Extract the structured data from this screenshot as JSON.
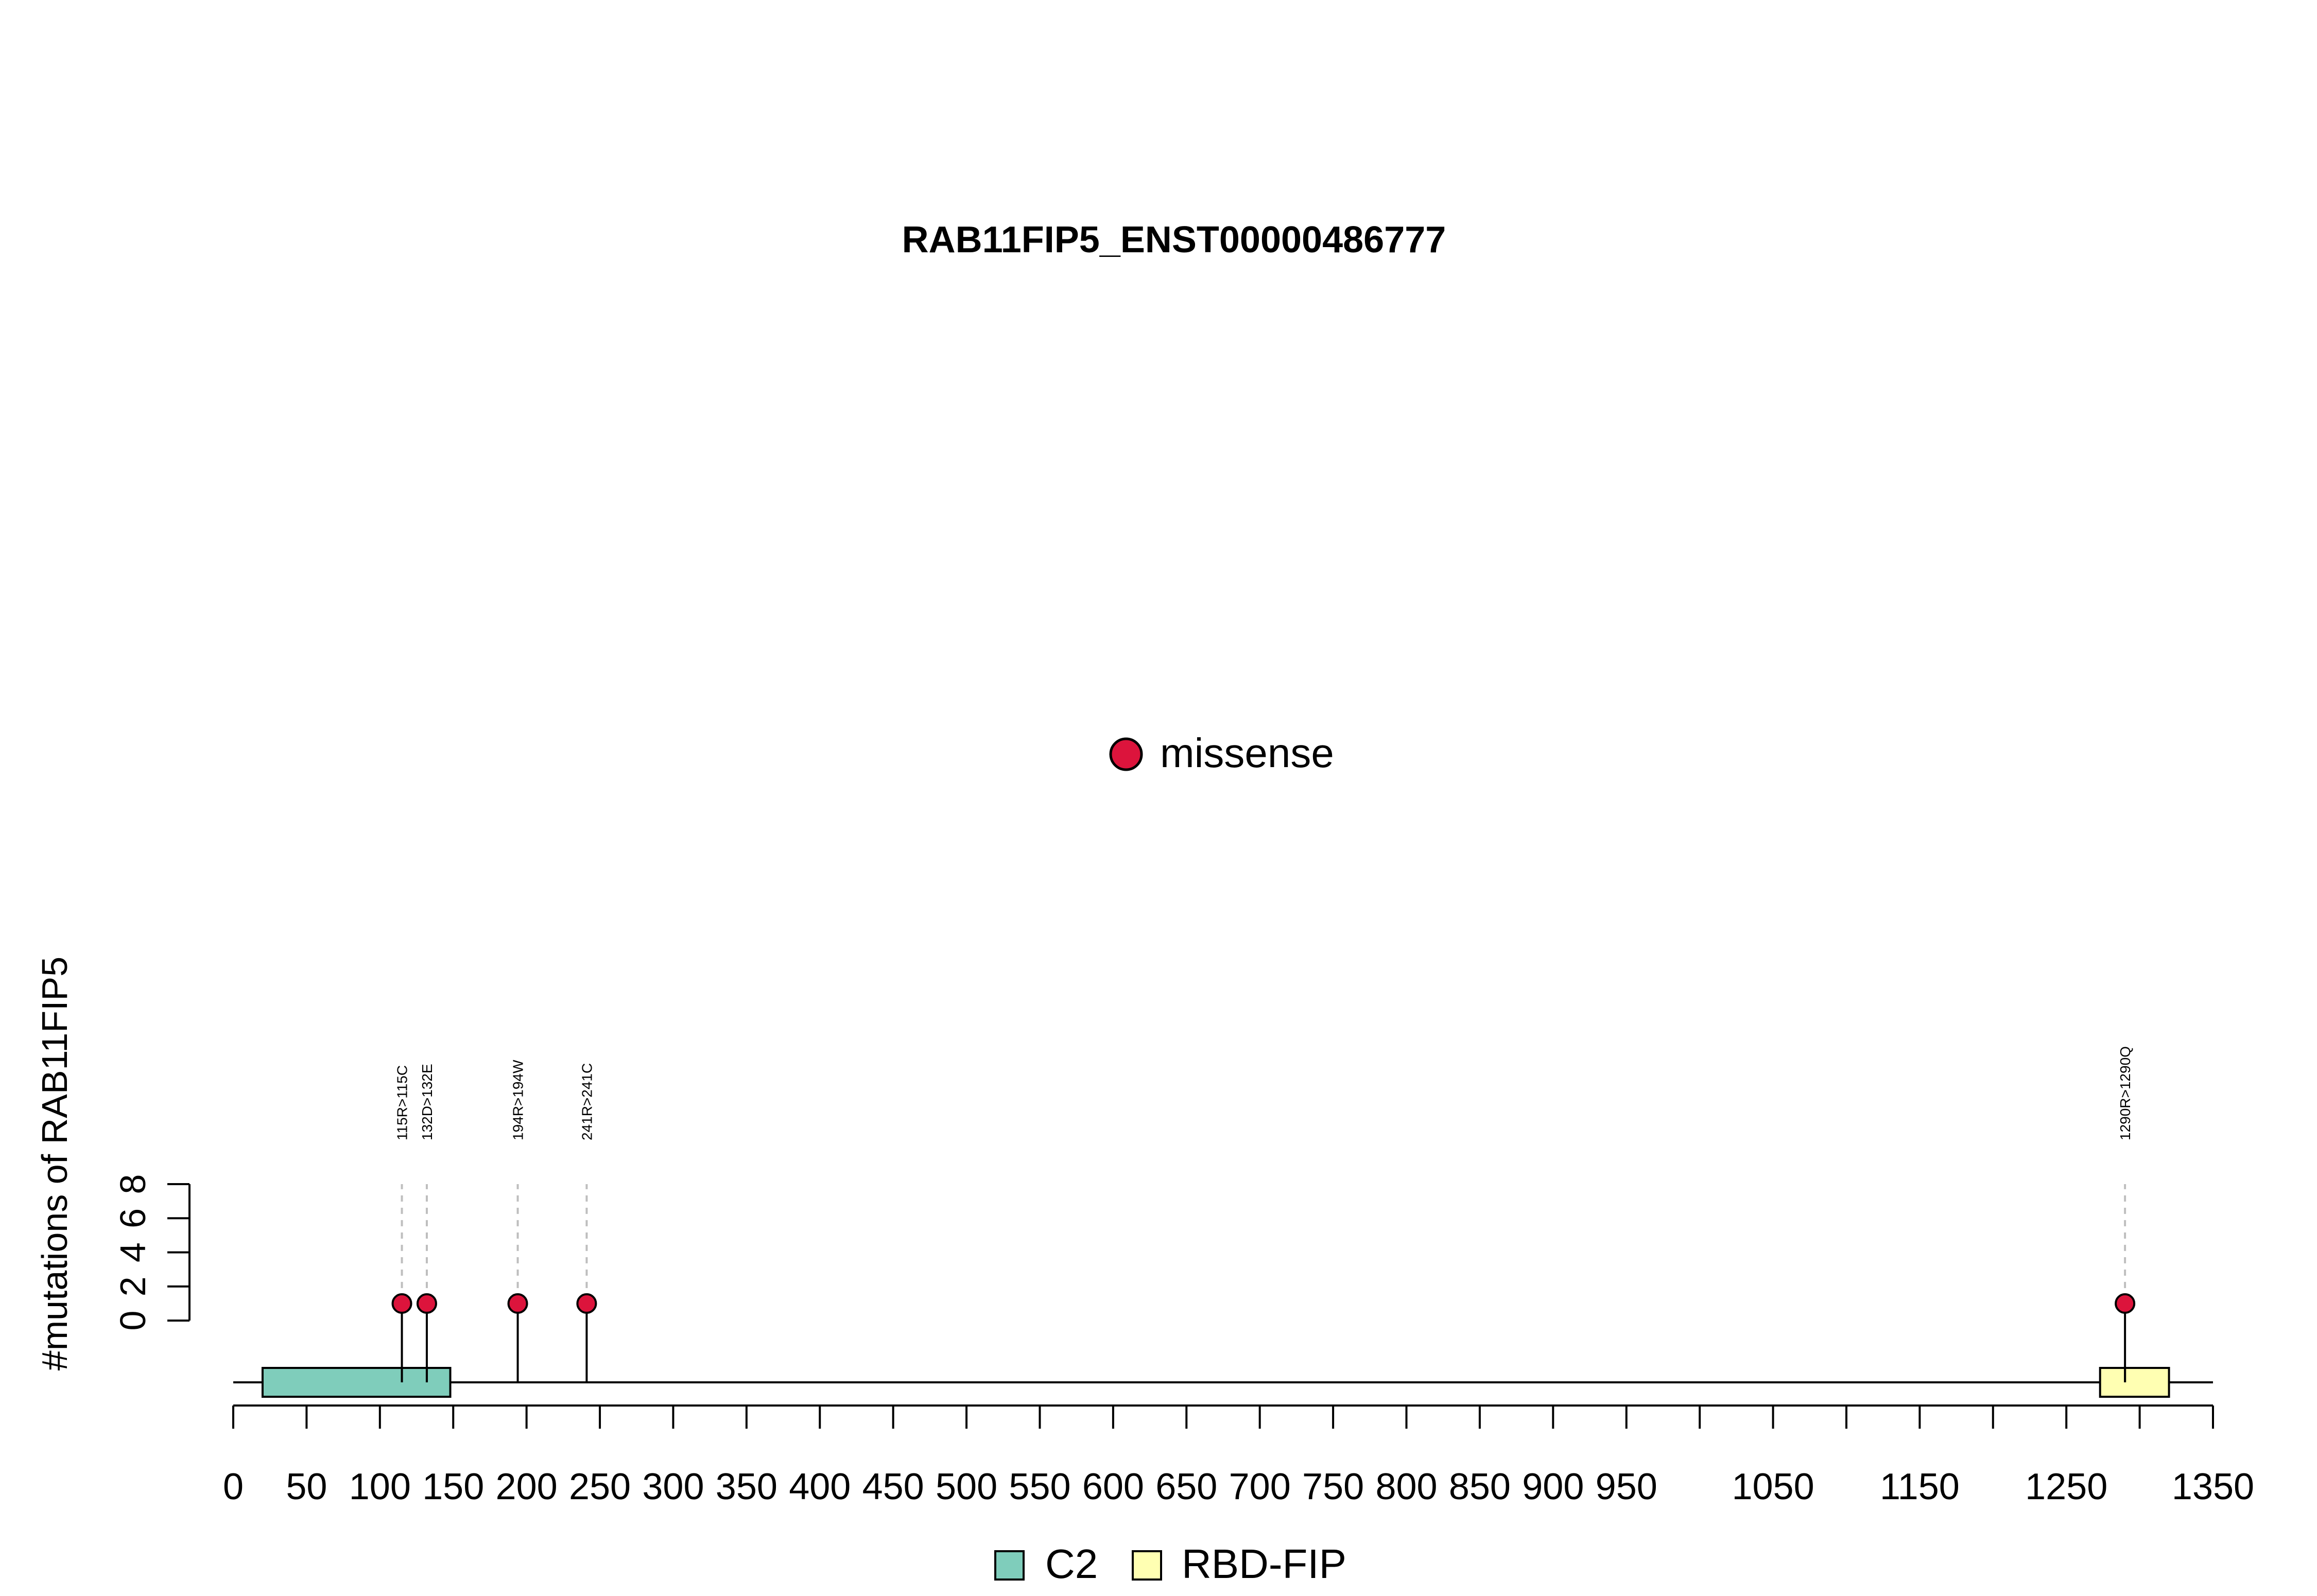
{
  "chart_data": {
    "type": "lollipop",
    "title": "RAB11FIP5_ENST00000486777",
    "ylabel": "#mutations of RAB11FIP5",
    "xlim": [
      0,
      1350
    ],
    "x_ticks": [
      0,
      50,
      100,
      150,
      200,
      250,
      300,
      350,
      400,
      450,
      500,
      550,
      600,
      650,
      700,
      750,
      800,
      850,
      900,
      950,
      1000,
      1050,
      1100,
      1150,
      1200,
      1250,
      1300,
      1350
    ],
    "x_tick_labels": [
      "0",
      "50",
      "100",
      "150",
      "200",
      "250",
      "300",
      "350",
      "400",
      "450",
      "500",
      "550",
      "600",
      "650",
      "700",
      "750",
      "800",
      "850",
      "900",
      "950",
      "",
      "1050",
      "",
      "1150",
      "",
      "1250",
      "",
      "1350"
    ],
    "ylim": [
      0,
      8
    ],
    "y_ticks": [
      0,
      2,
      4,
      6,
      8
    ],
    "mutation_type": {
      "name": "missense",
      "color": "#DC143C"
    },
    "mutations": [
      {
        "position": 115,
        "count": 1,
        "label": "115R>115C"
      },
      {
        "position": 132,
        "count": 1,
        "label": "132D>132E"
      },
      {
        "position": 194,
        "count": 1,
        "label": "194R>194W"
      },
      {
        "position": 241,
        "count": 1,
        "label": "241R>241C"
      },
      {
        "position": 1290,
        "count": 1,
        "label": "1290R>1290Q"
      }
    ],
    "domains": [
      {
        "name": "C2",
        "start": 20,
        "end": 148,
        "color": "#7FCDBB"
      },
      {
        "name": "RBD-FIP",
        "start": 1273,
        "end": 1320,
        "color": "#FFFFB2"
      }
    ]
  }
}
